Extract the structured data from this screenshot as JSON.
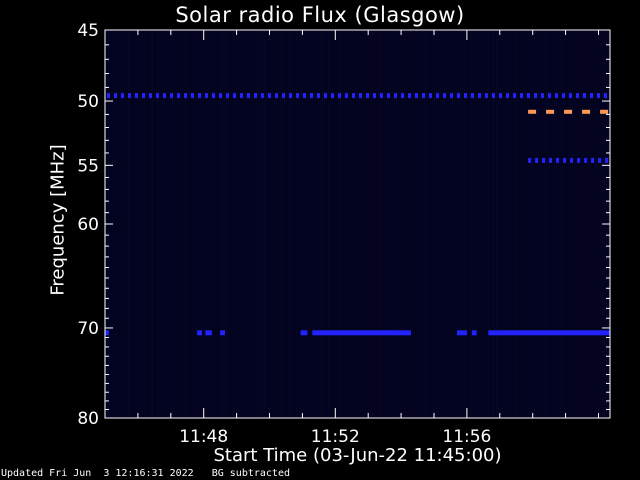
{
  "chart_data": {
    "type": "heatmap",
    "title": "Solar radio Flux (Glasgow)",
    "xlabel": "Start Time (03-Jun-22 11:45:00)",
    "ylabel": "Frequency [MHz]",
    "x_range_minutes": [
      0,
      15.35
    ],
    "x_ticks": [
      {
        "minute": 3,
        "label": "11:48"
      },
      {
        "minute": 7,
        "label": "11:52"
      },
      {
        "minute": 11,
        "label": "11:56"
      }
    ],
    "y_scale": "log",
    "y_range_mhz": [
      45,
      80
    ],
    "y_ticks": [
      {
        "mhz": 45,
        "label": "45"
      },
      {
        "mhz": 50,
        "label": "50"
      },
      {
        "mhz": 55,
        "label": "55"
      },
      {
        "mhz": 60,
        "label": "60"
      },
      {
        "mhz": 70,
        "label": "70"
      },
      {
        "mhz": 80,
        "label": "80"
      }
    ],
    "background_color": "#03031e",
    "features": [
      {
        "name": "band-49-6mhz-dashes",
        "mhz": 49.6,
        "color": "#2222ff",
        "style": "dashed",
        "minutes": [
          0,
          15.35
        ]
      },
      {
        "name": "band-50-8mhz-bright-dashes",
        "mhz": 50.8,
        "color": "#ff9955",
        "style": "dashed",
        "minutes": [
          12.8,
          15.35
        ]
      },
      {
        "name": "band-54-6mhz-dashes",
        "mhz": 54.6,
        "color": "#2222ff",
        "style": "dashed",
        "minutes": [
          12.8,
          15.35
        ]
      },
      {
        "name": "band-70-5mhz-segments",
        "mhz": 70.5,
        "color": "#2222ff",
        "style": "solid",
        "segments": [
          [
            0,
            0.12
          ],
          [
            2.8,
            2.95
          ],
          [
            3.05,
            3.25
          ],
          [
            3.5,
            3.65
          ],
          [
            5.95,
            6.15
          ],
          [
            6.3,
            9.3
          ],
          [
            10.7,
            11.0
          ],
          [
            11.15,
            11.3
          ],
          [
            11.65,
            15.35
          ]
        ]
      }
    ]
  },
  "footer": {
    "updated": "Updated Fri Jun  3 12:16:31 2022",
    "note": "BG subtracted"
  }
}
